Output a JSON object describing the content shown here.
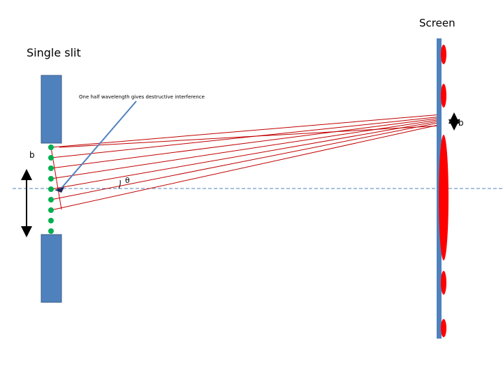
{
  "labels": {
    "screen": "Screen",
    "title": "Single slit",
    "annotation": "One half wavelength gives destructive interference",
    "slit_width": "b",
    "fringe_width": "b",
    "angle": "θ"
  }
}
